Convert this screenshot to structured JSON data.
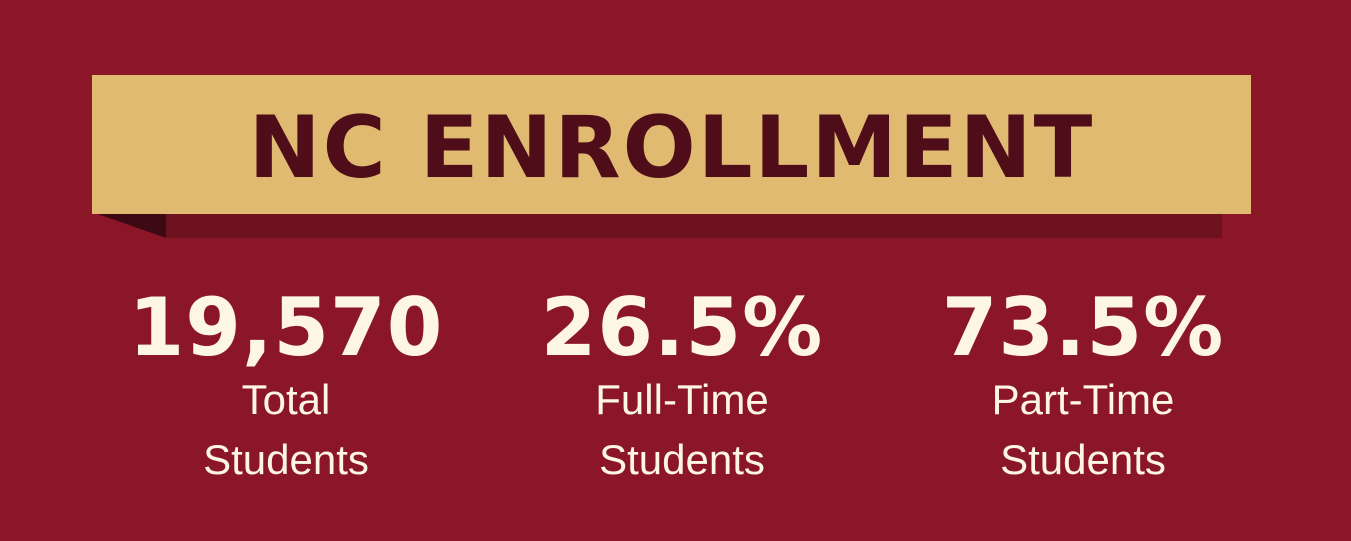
{
  "colors": {
    "background": "#8a1628",
    "banner": "#e1ba72",
    "banner_text": "#4e0d18",
    "banner_shadow": "#6e1220",
    "stat_text": "#fdf6e3"
  },
  "banner": {
    "title": "NC ENROLLMENT"
  },
  "stats": [
    {
      "value": "19,570",
      "label_line1": "Total",
      "label_line2": "Students"
    },
    {
      "value": "26.5%",
      "label_line1": "Full-Time",
      "label_line2": "Students"
    },
    {
      "value": "73.5%",
      "label_line1": "Part-Time",
      "label_line2": "Students"
    }
  ]
}
